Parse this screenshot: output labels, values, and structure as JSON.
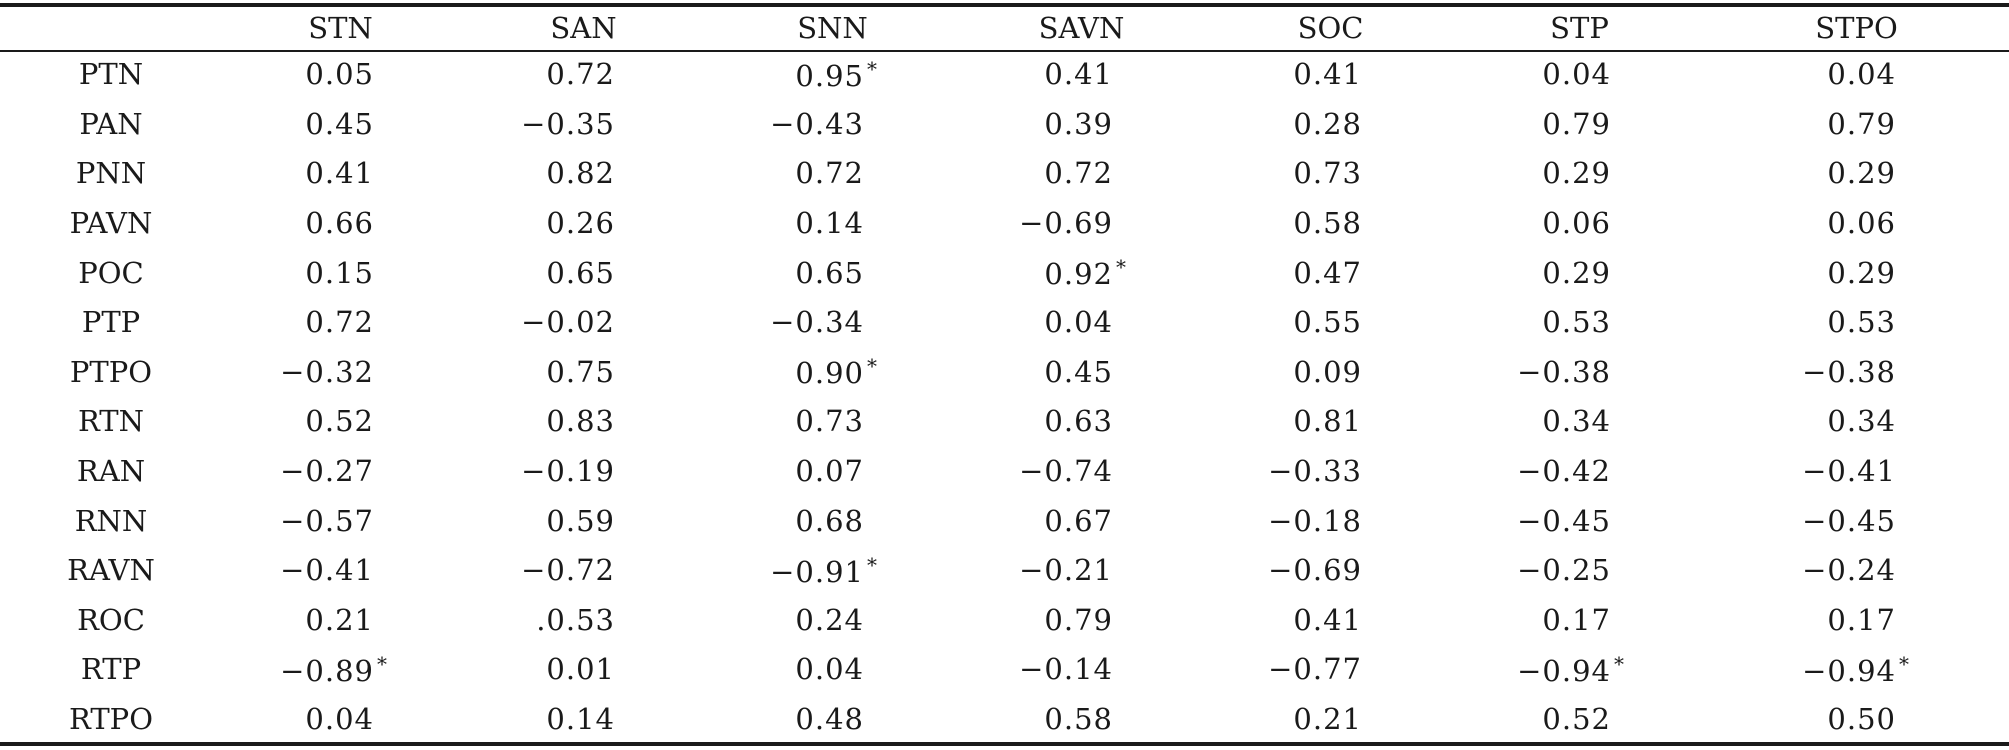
{
  "table": {
    "columns": [
      "",
      "STN",
      "SAN",
      "SNN",
      "SAVN",
      "SOC",
      "STP",
      "STPO"
    ],
    "rows": [
      {
        "label": "PTN",
        "values": [
          "0.05",
          "0.72",
          "0.95",
          "0.41",
          "0.41",
          "0.04",
          "0.04"
        ],
        "marks": [
          "",
          "",
          "*",
          "",
          "",
          "",
          ""
        ]
      },
      {
        "label": "PAN",
        "values": [
          "0.45",
          "−0.35",
          "−0.43",
          "0.39",
          "0.28",
          "0.79",
          "0.79"
        ],
        "marks": [
          "",
          "",
          "",
          "",
          "",
          "",
          ""
        ]
      },
      {
        "label": "PNN",
        "values": [
          "0.41",
          "0.82",
          "0.72",
          "0.72",
          "0.73",
          "0.29",
          "0.29"
        ],
        "marks": [
          "",
          "",
          "",
          "",
          "",
          "",
          ""
        ]
      },
      {
        "label": "PAVN",
        "values": [
          "0.66",
          "0.26",
          "0.14",
          "−0.69",
          "0.58",
          "0.06",
          "0.06"
        ],
        "marks": [
          "",
          "",
          "",
          "",
          "",
          "",
          ""
        ]
      },
      {
        "label": "POC",
        "values": [
          "0.15",
          "0.65",
          "0.65",
          "0.92",
          "0.47",
          "0.29",
          "0.29"
        ],
        "marks": [
          "",
          "",
          "",
          "*",
          "",
          "",
          ""
        ]
      },
      {
        "label": "PTP",
        "values": [
          "0.72",
          "−0.02",
          "−0.34",
          "0.04",
          "0.55",
          "0.53",
          "0.53"
        ],
        "marks": [
          "",
          "",
          "",
          "",
          "",
          "",
          ""
        ]
      },
      {
        "label": "PTPO",
        "values": [
          "−0.32",
          "0.75",
          "0.90",
          "0.45",
          "0.09",
          "−0.38",
          "−0.38"
        ],
        "marks": [
          "",
          "",
          "*",
          "",
          "",
          "",
          ""
        ]
      },
      {
        "label": "RTN",
        "values": [
          "0.52",
          "0.83",
          "0.73",
          "0.63",
          "0.81",
          "0.34",
          "0.34"
        ],
        "marks": [
          "",
          "",
          "",
          "",
          "",
          "",
          ""
        ]
      },
      {
        "label": "RAN",
        "values": [
          "−0.27",
          "−0.19",
          "0.07",
          "−0.74",
          "−0.33",
          "−0.42",
          "−0.41"
        ],
        "marks": [
          "",
          "",
          "",
          "",
          "",
          "",
          ""
        ]
      },
      {
        "label": "RNN",
        "values": [
          "−0.57",
          "0.59",
          "0.68",
          "0.67",
          "−0.18",
          "−0.45",
          "−0.45"
        ],
        "marks": [
          "",
          "",
          "",
          "",
          "",
          "",
          ""
        ]
      },
      {
        "label": "RAVN",
        "values": [
          "−0.41",
          "−0.72",
          "−0.91",
          "−0.21",
          "−0.69",
          "−0.25",
          "−0.24"
        ],
        "marks": [
          "",
          "",
          "*",
          "",
          "",
          "",
          ""
        ]
      },
      {
        "label": "ROC",
        "values": [
          "0.21",
          ".0.53",
          "0.24",
          "0.79",
          "0.41",
          "0.17",
          "0.17"
        ],
        "marks": [
          "",
          "",
          "",
          "",
          "",
          "",
          ""
        ]
      },
      {
        "label": "RTP",
        "values": [
          "−0.89",
          "0.01",
          "0.04",
          "−0.14",
          "−0.77",
          "−0.94",
          "−0.94"
        ],
        "marks": [
          "*",
          "",
          "",
          "",
          "",
          "*",
          "*"
        ]
      },
      {
        "label": "RTPO",
        "values": [
          "0.04",
          "0.14",
          "0.48",
          "0.58",
          "0.21",
          "0.52",
          "0.50"
        ],
        "marks": [
          "",
          "",
          "",
          "",
          "",
          "",
          ""
        ]
      }
    ]
  }
}
